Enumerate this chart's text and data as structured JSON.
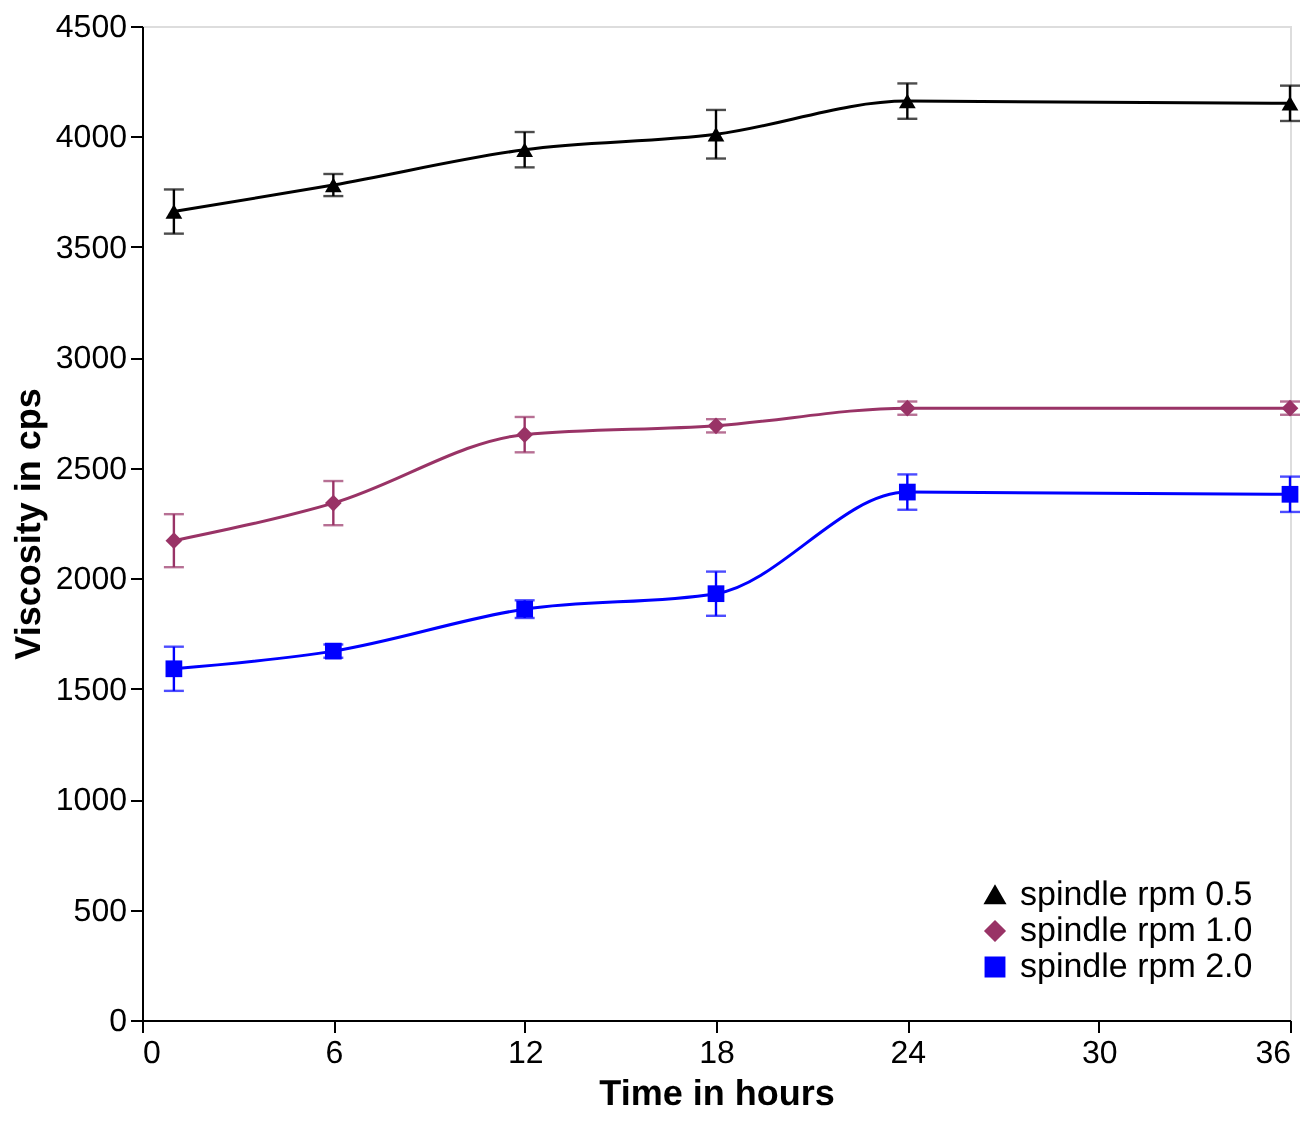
{
  "chart_data": {
    "type": "line",
    "xlabel": "Time in hours",
    "ylabel": "Viscosity in cps",
    "x": [
      1,
      6,
      12,
      18,
      24,
      36
    ],
    "series": [
      {
        "name": "spindle rpm 0.5",
        "color": "#000000",
        "marker": "triangle",
        "values": [
          3660,
          3780,
          3940,
          4010,
          4160,
          4150
        ],
        "errors": [
          100,
          50,
          80,
          110,
          80,
          80
        ]
      },
      {
        "name": "spindle rpm 1.0",
        "color": "#993366",
        "marker": "diamond",
        "values": [
          2170,
          2340,
          2650,
          2690,
          2770,
          2770
        ],
        "errors": [
          120,
          100,
          80,
          30,
          30,
          30
        ]
      },
      {
        "name": "spindle rpm 2.0",
        "color": "#0000ff",
        "marker": "square",
        "values": [
          1590,
          1670,
          1860,
          1930,
          2390,
          2380
        ],
        "errors": [
          100,
          30,
          40,
          100,
          80,
          80
        ]
      }
    ],
    "xlim": [
      0,
      36
    ],
    "xticks": [
      0,
      6,
      12,
      18,
      24,
      30,
      36
    ],
    "ylim": [
      0,
      4500
    ],
    "yticks": [
      0,
      500,
      1000,
      1500,
      2000,
      2500,
      3000,
      3500,
      4000,
      4500
    ],
    "grid": false,
    "legend": "bottom right",
    "line_style": "solid"
  }
}
